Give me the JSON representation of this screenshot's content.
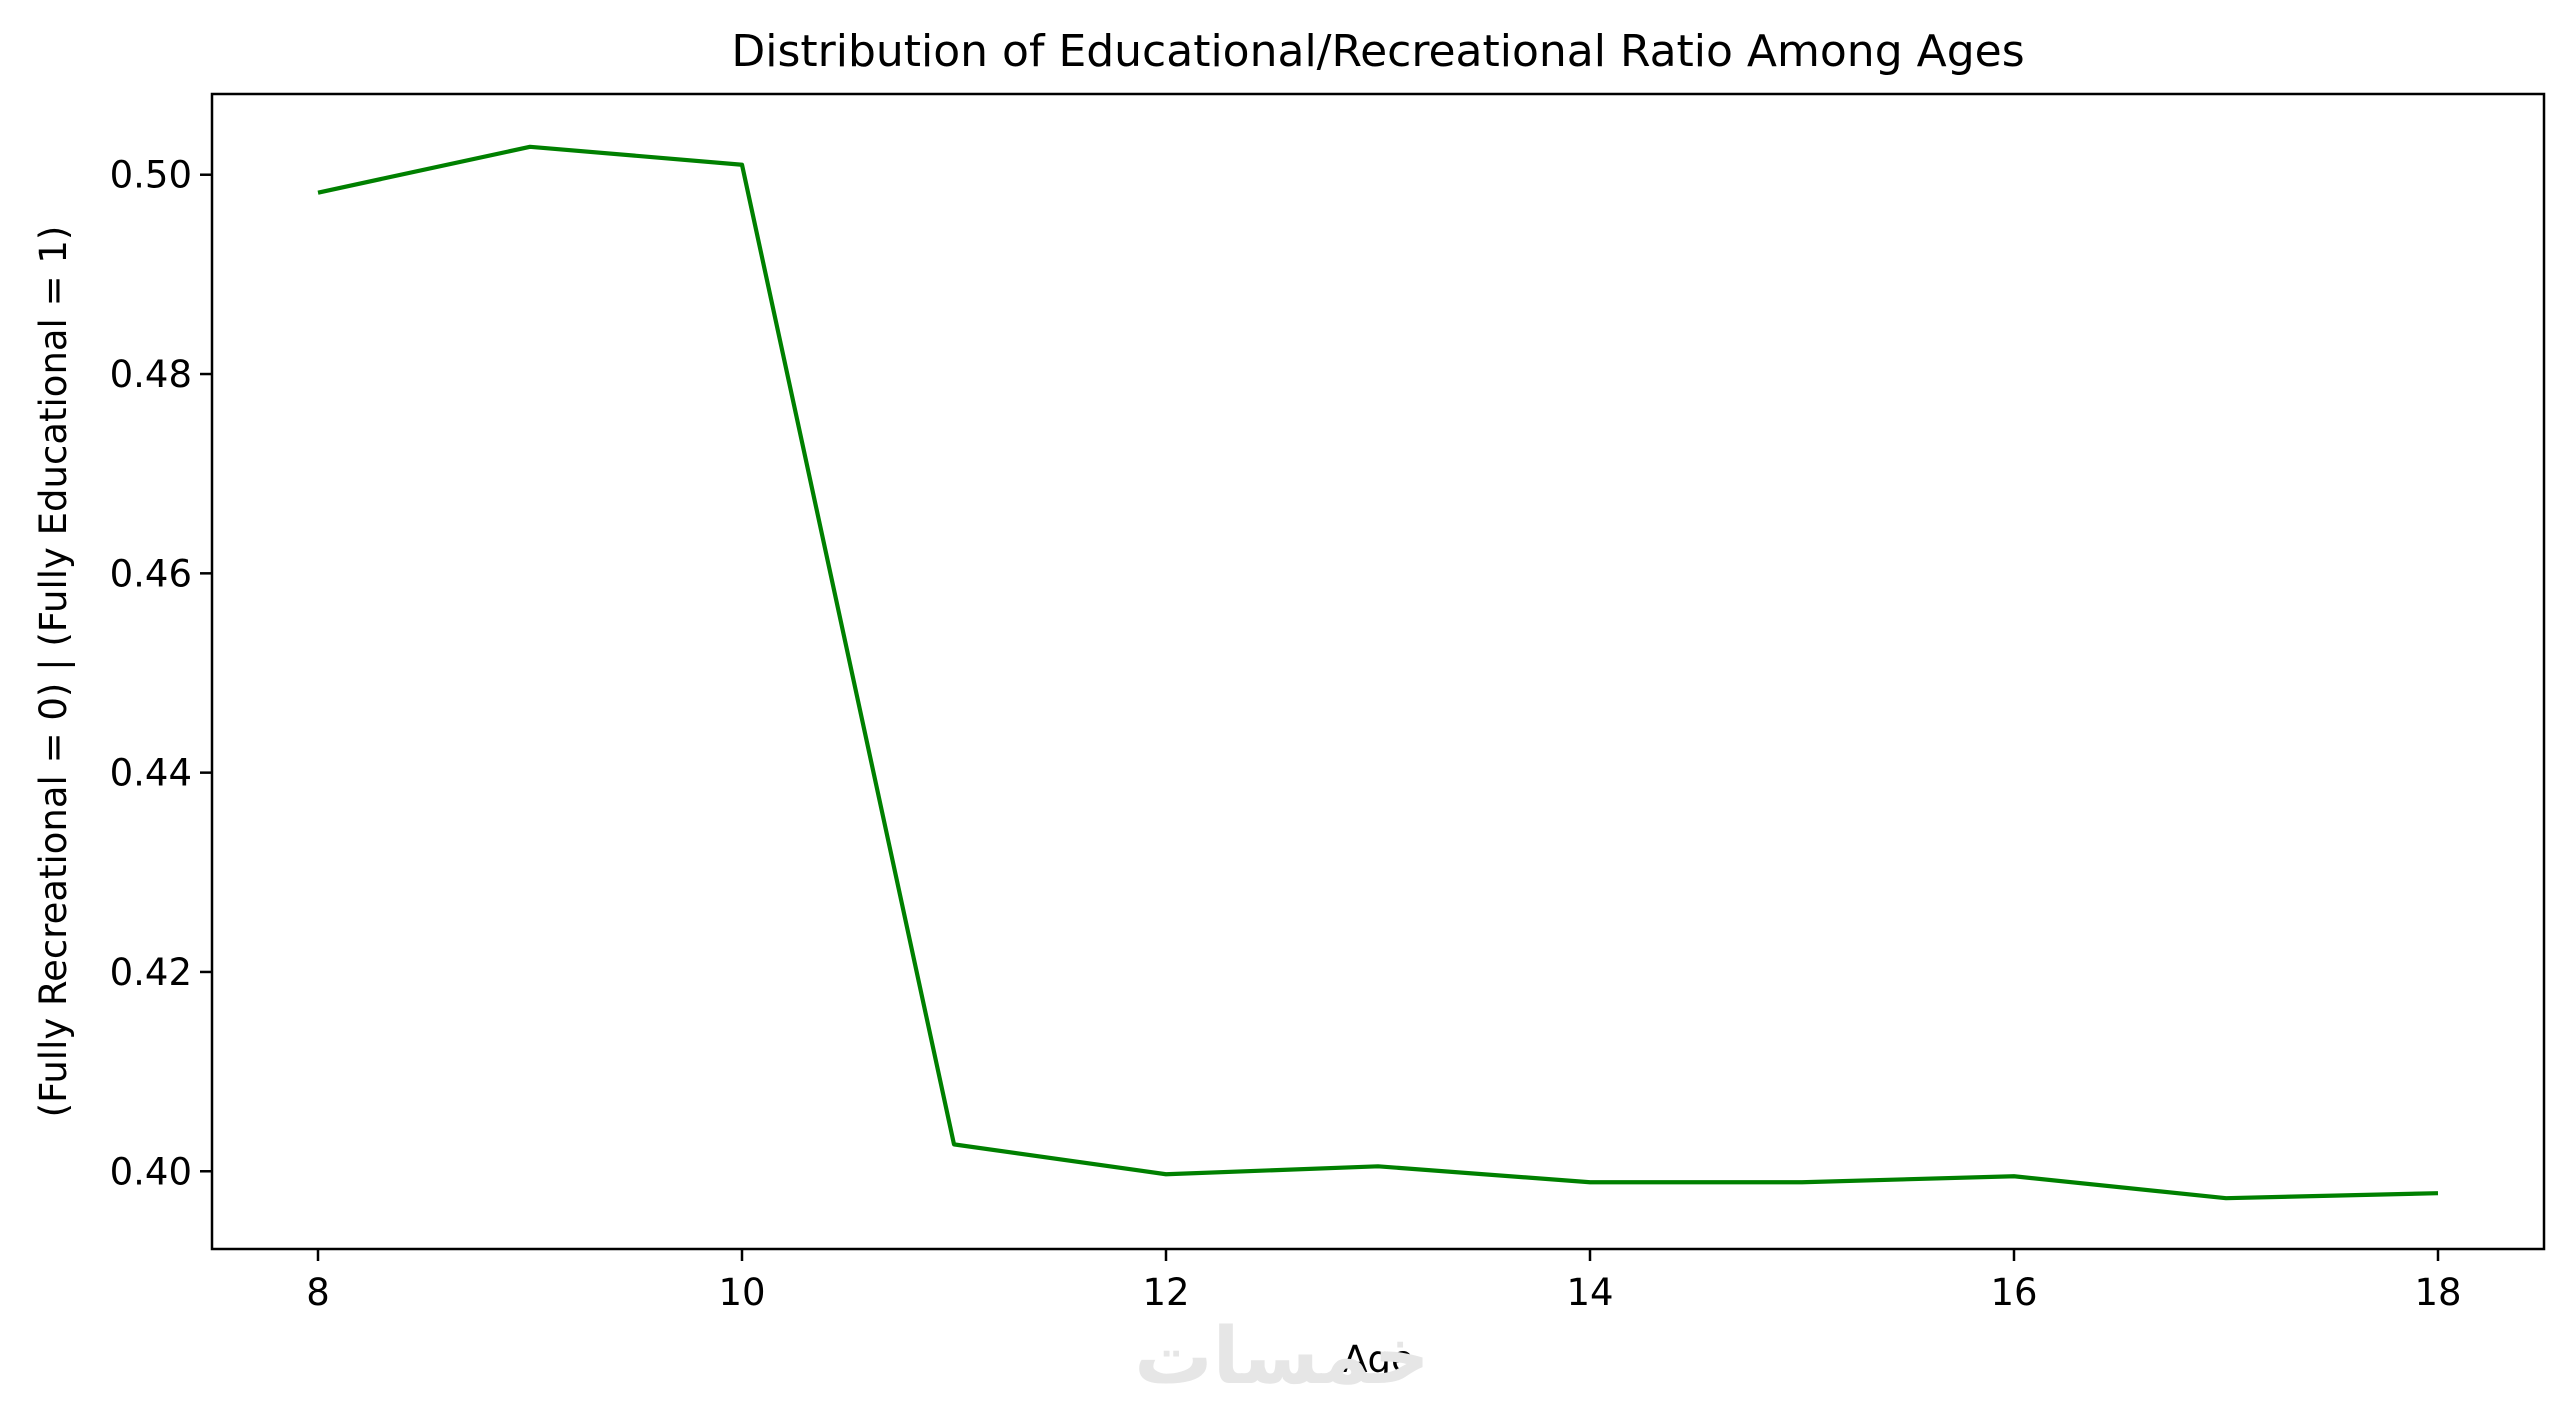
{
  "chart_data": {
    "type": "line",
    "title": "Distribution of Educational/Recreational Ratio Among Ages",
    "xlabel": "Age",
    "ylabel": "(Fully Recreational = 0)  |  (Fully Educational = 1)",
    "x": [
      8,
      9,
      10,
      11,
      12,
      13,
      14,
      15,
      16,
      17,
      18
    ],
    "series": [
      {
        "values": [
          0.4982,
          0.5028,
          0.501,
          0.4027,
          0.3997,
          0.4005,
          0.3989,
          0.3989,
          0.3995,
          0.3973,
          0.3978
        ],
        "color": "#008000"
      }
    ],
    "xlim": [
      7.5,
      18.5
    ],
    "ylim": [
      0.3922,
      0.5081
    ],
    "xticks": [
      8,
      10,
      12,
      14,
      16,
      18
    ],
    "xtick_labels": [
      "8",
      "10",
      "12",
      "14",
      "16",
      "18"
    ],
    "yticks": [
      0.4,
      0.42,
      0.44,
      0.46,
      0.48,
      0.5
    ],
    "ytick_labels": [
      "0.40",
      "0.42",
      "0.44",
      "0.46",
      "0.48",
      "0.50"
    ],
    "grid": false,
    "legend": "none"
  },
  "watermark": {
    "text": "خمسات"
  }
}
